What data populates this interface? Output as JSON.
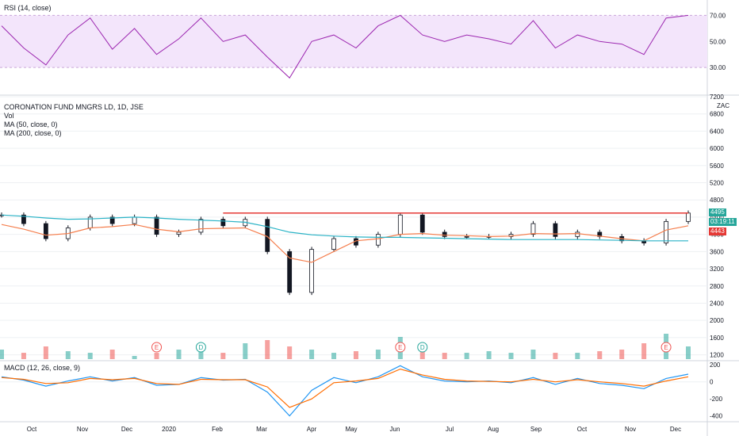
{
  "colors": {
    "up": "#26a69a",
    "down": "#ef5350",
    "ma50": "#f57f4e",
    "ma200": "#2ab3c6",
    "rsi_line": "#9c27b0",
    "rsi_band": "#f3e5fb",
    "resistance": "#e53935",
    "macd_line": "#2196f3",
    "signal_line": "#ff6d00",
    "grid": "#eef0f3"
  },
  "rsi_panel": {
    "label": "RSI (14, close)"
  },
  "main_panel": {
    "legend": [
      "CORONATION FUND MNGRS LD, 1D, JSE",
      "Vol",
      "MA (50, close, 0)",
      "MA (200, close, 0)"
    ],
    "currency": "ZAC",
    "price_tag_current": "4495",
    "price_tag_countdown": "03:19:11",
    "price_tag_ma": "4443"
  },
  "macd_panel": {
    "label": "MACD (12, 26, close, 9)"
  },
  "event_markers": [
    "E",
    "D",
    "E",
    "D",
    "E"
  ],
  "chart_data": [
    {
      "type": "line",
      "title": "RSI (14, close)",
      "y_ticks": [
        "70.00",
        "50.00",
        "30.00"
      ],
      "ylim": [
        10,
        80
      ],
      "band": [
        30,
        70
      ],
      "x": [
        "2019-09-23",
        "2019-10-07",
        "2019-10-21",
        "2019-11-04",
        "2019-11-18",
        "2019-12-02",
        "2019-12-16",
        "2020-01-06",
        "2020-01-20",
        "2020-02-03",
        "2020-02-17",
        "2020-03-02",
        "2020-03-16",
        "2020-03-30",
        "2020-04-14",
        "2020-04-28",
        "2020-05-12",
        "2020-05-26",
        "2020-06-09",
        "2020-06-23",
        "2020-07-07",
        "2020-07-21",
        "2020-08-04",
        "2020-08-18",
        "2020-09-01",
        "2020-09-15",
        "2020-09-29",
        "2020-10-13",
        "2020-10-27",
        "2020-11-10",
        "2020-11-24",
        "2020-12-04"
      ],
      "values": [
        62,
        45,
        32,
        55,
        68,
        44,
        60,
        40,
        52,
        68,
        50,
        55,
        38,
        22,
        50,
        55,
        45,
        62,
        70,
        55,
        50,
        55,
        52,
        48,
        66,
        45,
        55,
        50,
        48,
        40,
        68,
        70
      ]
    },
    {
      "type": "bar",
      "title": "CORONATION FUND MNGRS LD, 1D, JSE",
      "y_ticks": [
        "7200",
        "6800",
        "6400",
        "6000",
        "5600",
        "5200",
        "4800",
        "4400",
        "4000",
        "3600",
        "3200",
        "2800",
        "2400",
        "2000",
        "1600",
        "1200"
      ],
      "ylim": [
        1100,
        7200
      ],
      "x_ticks": [
        "Oct",
        "Nov",
        "Dec",
        "2020",
        "Feb",
        "Mar",
        "Apr",
        "May",
        "Jun",
        "Jul",
        "Aug",
        "Sep",
        "Oct",
        "Nov",
        "Dec"
      ],
      "x": [
        "2019-09-23",
        "2019-10-07",
        "2019-10-21",
        "2019-11-04",
        "2019-11-18",
        "2019-12-02",
        "2019-12-16",
        "2020-01-06",
        "2020-01-20",
        "2020-02-03",
        "2020-02-17",
        "2020-03-02",
        "2020-03-16",
        "2020-03-30",
        "2020-04-14",
        "2020-04-28",
        "2020-05-12",
        "2020-05-26",
        "2020-06-09",
        "2020-06-23",
        "2020-07-07",
        "2020-07-21",
        "2020-08-04",
        "2020-08-18",
        "2020-09-01",
        "2020-09-15",
        "2020-09-29",
        "2020-10-13",
        "2020-10-27",
        "2020-11-10",
        "2020-11-24",
        "2020-12-04"
      ],
      "close": [
        4450,
        4250,
        3900,
        4150,
        4400,
        4250,
        4400,
        4000,
        4050,
        4350,
        4200,
        4350,
        3600,
        2650,
        3650,
        3900,
        3750,
        4000,
        4450,
        4050,
        3950,
        3950,
        3950,
        4000,
        4250,
        3950,
        4050,
        3950,
        3850,
        3800,
        4300,
        4495
      ],
      "ma50": [
        4230,
        4120,
        3980,
        4020,
        4150,
        4180,
        4230,
        4120,
        4060,
        4130,
        4140,
        4150,
        3950,
        3450,
        3350,
        3600,
        3850,
        3900,
        4000,
        4020,
        3980,
        3970,
        3950,
        3960,
        4020,
        4010,
        4020,
        3960,
        3900,
        3850,
        4100,
        4200
      ],
      "ma200": [
        4450,
        4420,
        4380,
        4350,
        4360,
        4380,
        4400,
        4380,
        4350,
        4330,
        4310,
        4280,
        4180,
        4050,
        3990,
        3960,
        3940,
        3930,
        3930,
        3920,
        3910,
        3900,
        3890,
        3880,
        3880,
        3880,
        3880,
        3870,
        3860,
        3850,
        3850,
        3850
      ],
      "resistance": 4495,
      "volume": [
        1400,
        1300,
        1500,
        1350,
        1300,
        1400,
        1200,
        1300,
        1400,
        1350,
        1300,
        1600,
        1700,
        1500,
        1400,
        1300,
        1350,
        1400,
        1800,
        1450,
        1300,
        1300,
        1350,
        1300,
        1400,
        1300,
        1300,
        1350,
        1400,
        1600,
        1900,
        1500
      ]
    },
    {
      "type": "line",
      "title": "MACD (12, 26, close, 9)",
      "y_ticks": [
        "200",
        "0",
        "-200",
        "-400"
      ],
      "ylim": [
        -450,
        230
      ],
      "x": [
        "2019-09-23",
        "2019-10-07",
        "2019-10-21",
        "2019-11-04",
        "2019-11-18",
        "2019-12-02",
        "2019-12-16",
        "2020-01-06",
        "2020-01-20",
        "2020-02-03",
        "2020-02-17",
        "2020-03-02",
        "2020-03-16",
        "2020-03-30",
        "2020-04-14",
        "2020-04-28",
        "2020-05-12",
        "2020-05-26",
        "2020-06-09",
        "2020-06-23",
        "2020-07-07",
        "2020-07-21",
        "2020-08-04",
        "2020-08-18",
        "2020-09-01",
        "2020-09-15",
        "2020-09-29",
        "2020-10-13",
        "2020-10-27",
        "2020-11-10",
        "2020-11-24",
        "2020-12-04"
      ],
      "series": [
        {
          "values": [
            60,
            20,
            -50,
            10,
            60,
            10,
            50,
            -40,
            -30,
            50,
            20,
            30,
            -120,
            -400,
            -100,
            50,
            -10,
            60,
            190,
            60,
            10,
            0,
            10,
            -10,
            50,
            -30,
            40,
            -20,
            -40,
            -80,
            40,
            90
          ]
        },
        {
          "values": [
            50,
            30,
            -20,
            -10,
            40,
            25,
            40,
            -20,
            -30,
            30,
            25,
            25,
            -60,
            -300,
            -200,
            -10,
            10,
            40,
            150,
            80,
            30,
            10,
            5,
            0,
            30,
            0,
            25,
            0,
            -20,
            -50,
            10,
            60
          ]
        }
      ]
    }
  ]
}
